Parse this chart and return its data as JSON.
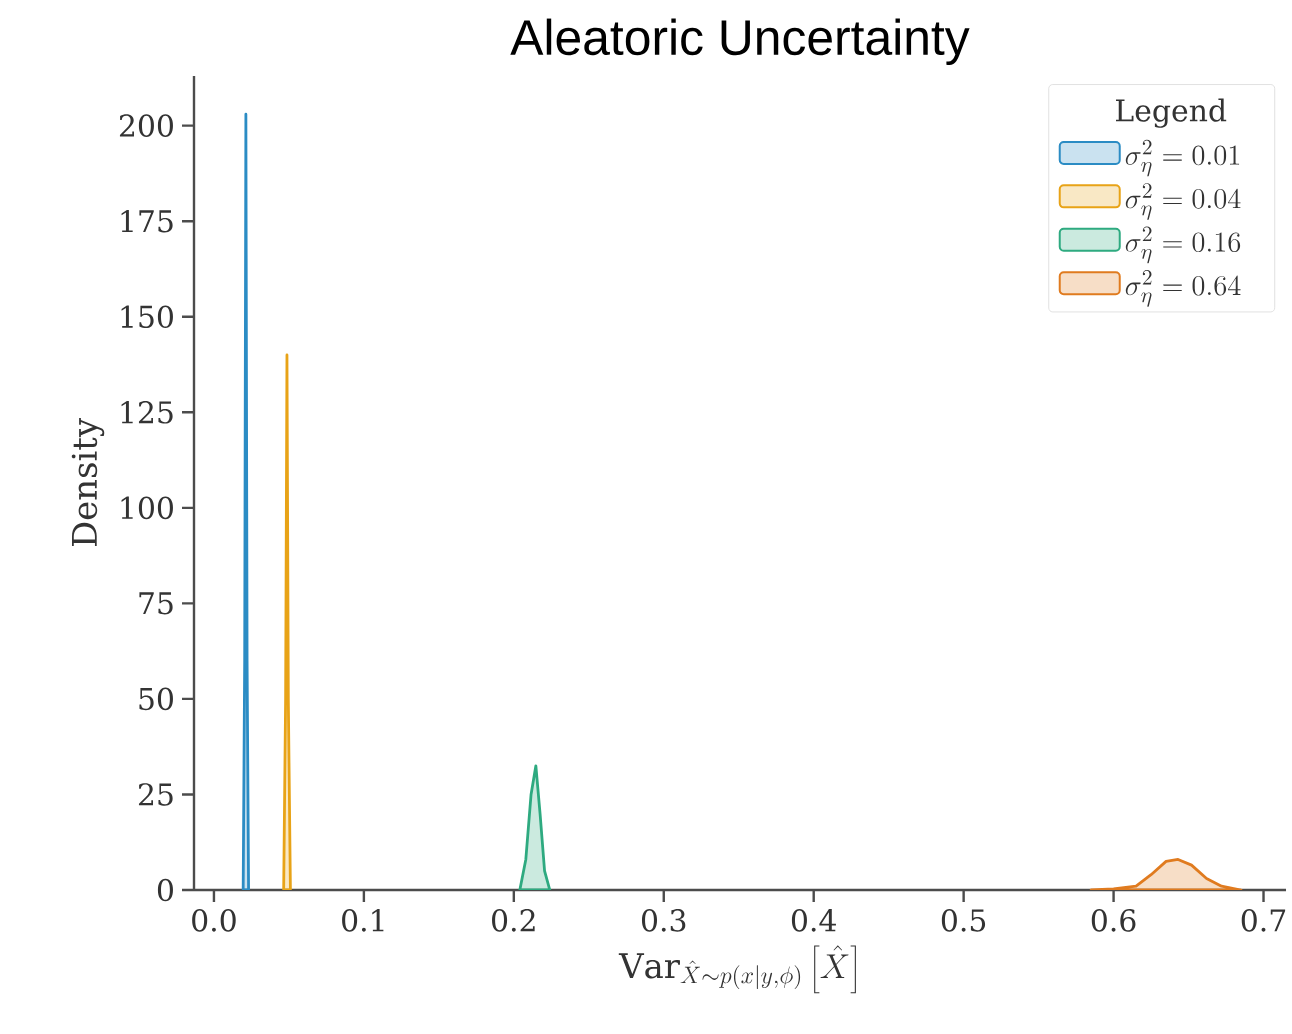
{
  "chart_data": {
    "type": "area",
    "title": "Aleatoric Uncertainty",
    "xlabel": "\\mathrm{Var}_{\\hat{X}\\sim p(x|y,\\phi)}\\left[\\hat{X}\\right]",
    "ylabel": "Density",
    "legend_title": "Legend",
    "xlim": [
      -0.0133,
      0.715
    ],
    "ylim": [
      0,
      213
    ],
    "xticks": [
      {
        "value": 0,
        "label": "0.0"
      },
      0.1,
      0.2,
      0.3,
      0.4,
      0.5,
      0.6,
      0.7
    ],
    "yticks": [
      0,
      25,
      50,
      75,
      100,
      125,
      150,
      175,
      200
    ],
    "grid": false,
    "legend": "top right",
    "series": [
      {
        "name": "\\sigma_\\eta^2 = 0.01",
        "color": "#2b8cc4",
        "x": [
          0.0195,
          0.0205,
          0.0213,
          0.0221,
          0.0231
        ],
        "values": [
          0,
          60,
          203,
          60,
          0
        ]
      },
      {
        "name": "\\sigma_\\eta^2 = 0.04",
        "color": "#e8a317",
        "x": [
          0.0465,
          0.0478,
          0.0487,
          0.0496,
          0.051
        ],
        "values": [
          0,
          50,
          140,
          50,
          0
        ]
      },
      {
        "name": "\\sigma_\\eta^2 = 0.16",
        "color": "#2eaa80",
        "x": [
          0.204,
          0.208,
          0.2115,
          0.2147,
          0.2175,
          0.2205,
          0.224
        ],
        "values": [
          0,
          8,
          25,
          32.5,
          20,
          5,
          0
        ]
      },
      {
        "name": "\\sigma_\\eta^2 = 0.64",
        "color": "#e07b1f",
        "x": [
          0.585,
          0.6,
          0.615,
          0.625,
          0.635,
          0.643,
          0.652,
          0.662,
          0.672,
          0.685
        ],
        "values": [
          0,
          0.3,
          1,
          4,
          7.5,
          8,
          6.5,
          3,
          1,
          0
        ]
      }
    ]
  }
}
